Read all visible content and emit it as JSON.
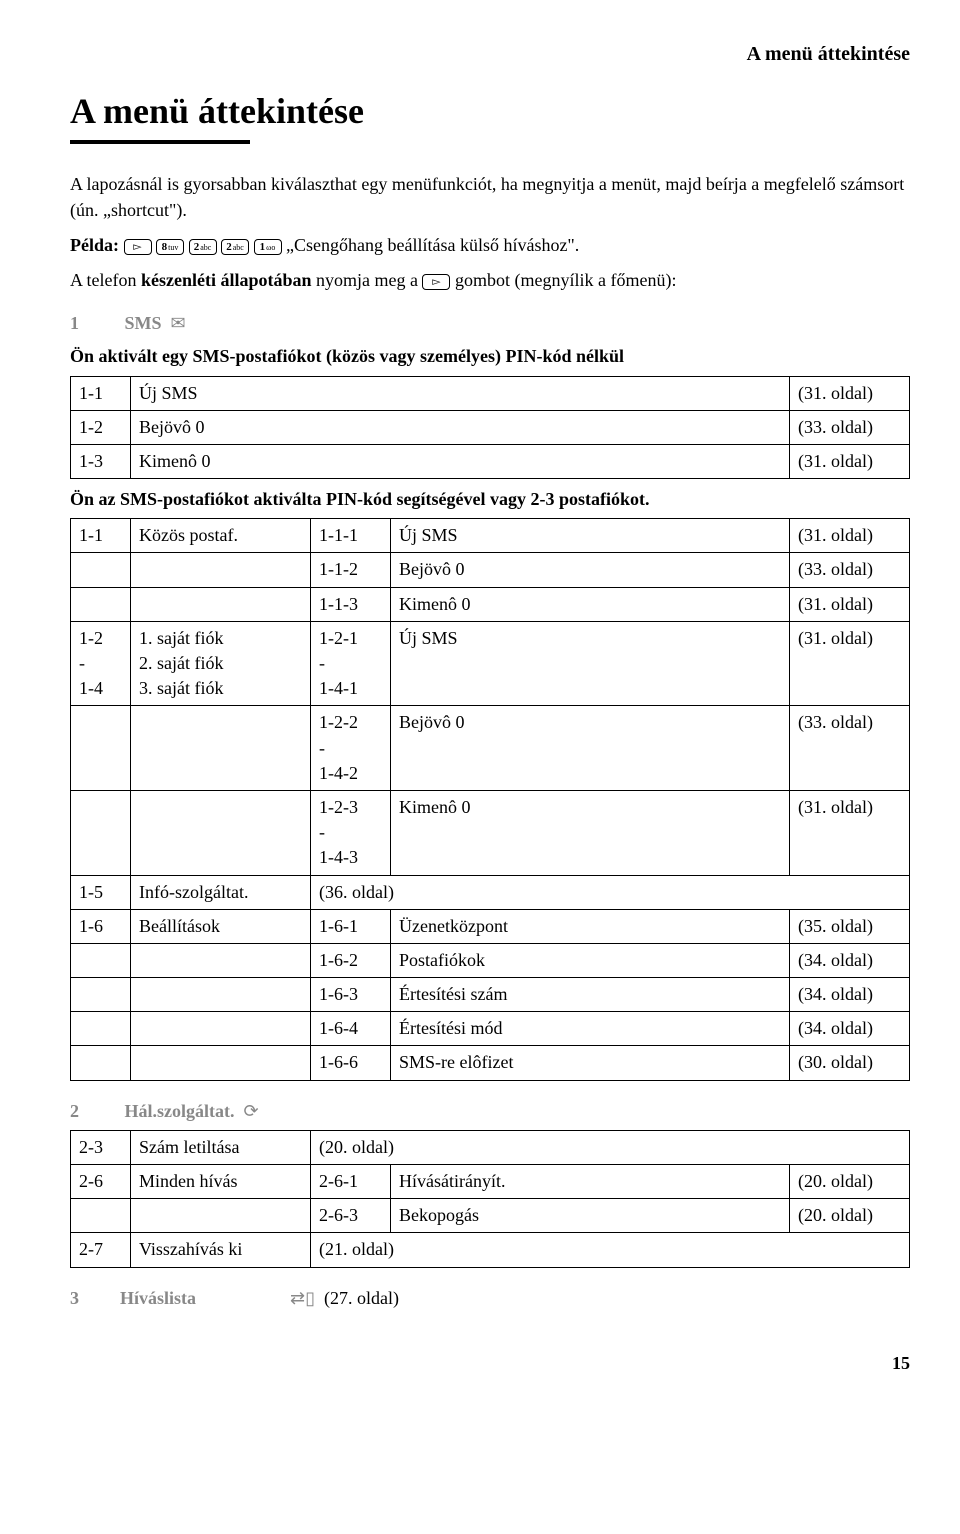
{
  "header_right": "A menü áttekintése",
  "title": "A menü áttekintése",
  "intro_p": "A lapozásnál is gyorsabban kiválaszthat egy menüfunkciót, ha megnyitja a menüt, majd beírja a megfelelő számsort (ún. „shortcut\").",
  "example_label": "Példa:",
  "example_keys": [
    "v",
    "8 tuv",
    "2 abc",
    "2 abc",
    "1 ωο"
  ],
  "example_text": "„Csengőhang beállítása külső híváshoz\".",
  "keszenleti_a": "A telefon ",
  "keszenleti_b": "készenléti állapotában",
  "keszenleti_c": " nyomja meg a ",
  "keszenleti_key": "v",
  "keszenleti_d": " gombot (megnyílik a főmenü):",
  "m1_num": "1",
  "m1_title": "SMS",
  "m1_sub1": "Ön aktivált egy SMS-postafiókot (közös vagy személyes) PIN-kód nélkül",
  "t1": [
    [
      "1-1",
      "Új SMS",
      "(31. oldal)"
    ],
    [
      "1-2",
      "Bejövô 0",
      "(33. oldal)"
    ],
    [
      "1-3",
      "Kimenô 0",
      "(31. oldal)"
    ]
  ],
  "m1_sub2": "Ön az SMS-postafiókot aktiválta PIN-kód segítségével vagy 2-3 postafiókot.",
  "t2": [
    [
      "1-1",
      "Közös postaf.",
      "1-1-1",
      "Új SMS",
      "(31. oldal)"
    ],
    [
      "",
      "",
      "1-1-2",
      "Bejövô 0",
      "(33. oldal)"
    ],
    [
      "",
      "",
      "1-1-3",
      "Kimenô 0",
      "(31. oldal)"
    ],
    [
      "1-2\n-\n1-4",
      "1. saját fiók\n2. saját fiók\n3. saját fiók",
      "1-2-1\n-\n1-4-1",
      "Új SMS",
      "(31. oldal)"
    ],
    [
      "",
      "",
      "1-2-2\n-\n1-4-2",
      "Bejövô 0",
      "(33. oldal)"
    ],
    [
      "",
      "",
      "1-2-3\n-\n1-4-3",
      "Kimenô 0",
      "(31. oldal)"
    ],
    [
      "1-5",
      "Infó-szolgáltat.",
      "(36. oldal)",
      "",
      ""
    ],
    [
      "1-6",
      "Beállítások",
      "1-6-1",
      "Üzenetközpont",
      "(35. oldal)"
    ],
    [
      "",
      "",
      "1-6-2",
      "Postafiókok",
      "(34. oldal)"
    ],
    [
      "",
      "",
      "1-6-3",
      "Értesítési szám",
      "(34. oldal)"
    ],
    [
      "",
      "",
      "1-6-4",
      "Értesítési mód",
      "(34. oldal)"
    ],
    [
      "",
      "",
      "1-6-6",
      "SMS-re elôfizet",
      "(30. oldal)"
    ]
  ],
  "m2_num": "2",
  "m2_title": "Hál.szolgáltat.",
  "t3": [
    [
      "2-3",
      "Szám letiltása",
      "(20. oldal)",
      "",
      ""
    ],
    [
      "2-6",
      "Minden hívás",
      "2-6-1",
      "Hívásátirányít.",
      "(20. oldal)"
    ],
    [
      "",
      "",
      "2-6-3",
      "Bekopogás",
      "(20. oldal)"
    ],
    [
      "2-7",
      "Visszahívás ki",
      "(21. oldal)",
      "",
      ""
    ]
  ],
  "m3_num": "3",
  "m3_title": "Híváslista",
  "m3_page": "(27. oldal)",
  "page_num": "15"
}
